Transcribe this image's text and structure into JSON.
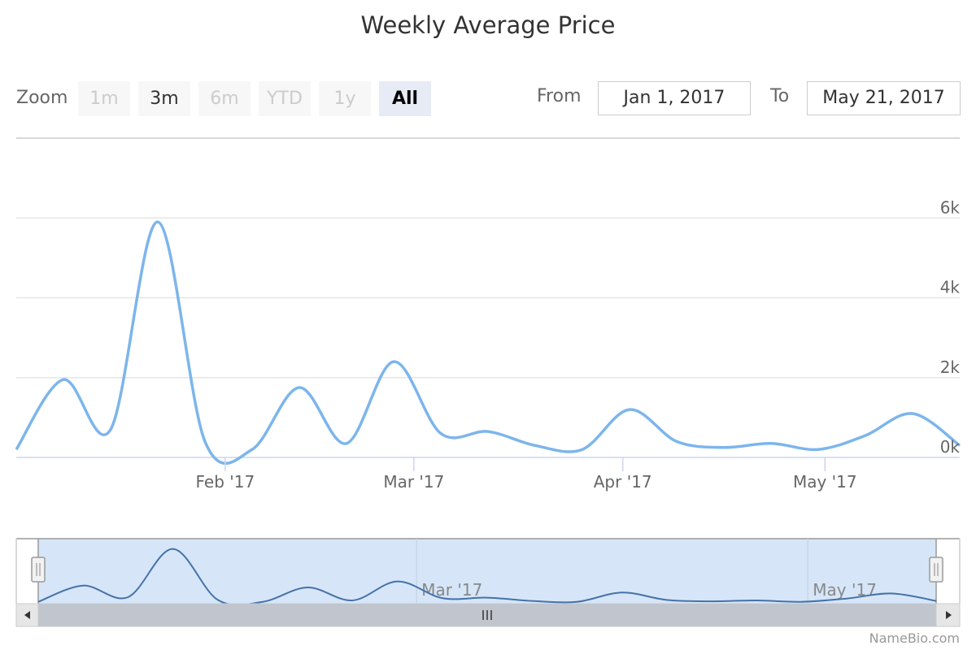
{
  "title": "Weekly Average Price",
  "range_selector": {
    "zoom_label": "Zoom",
    "buttons": [
      {
        "label": "1m",
        "state": "disabled"
      },
      {
        "label": "3m",
        "state": "enabled"
      },
      {
        "label": "6m",
        "state": "disabled"
      },
      {
        "label": "YTD",
        "state": "disabled"
      },
      {
        "label": "1y",
        "state": "disabled"
      },
      {
        "label": "All",
        "state": "active"
      }
    ],
    "from_label": "From",
    "from_value": "Jan 1, 2017",
    "to_label": "To",
    "to_value": "May 21, 2017"
  },
  "credits": "NameBio.com",
  "colors": {
    "series": "#7cb5ec",
    "navigator_series": "#4572a7",
    "navigator_mask": "#d6e6f8",
    "scrollbar": "#c0c5ce"
  },
  "chart_data": {
    "type": "line",
    "title": "Weekly Average Price",
    "x_range": [
      "2017-01-01",
      "2017-05-21"
    ],
    "y_range": [
      0,
      8000
    ],
    "y_ticks": [
      {
        "value": 0,
        "label": "0k"
      },
      {
        "value": 2000,
        "label": "2k"
      },
      {
        "value": 4000,
        "label": "4k"
      },
      {
        "value": 6000,
        "label": "6k"
      }
    ],
    "x_ticks": [
      {
        "date": "2017-02-01",
        "label": "Feb '17"
      },
      {
        "date": "2017-03-01",
        "label": "Mar '17"
      },
      {
        "date": "2017-04-01",
        "label": "Apr '17"
      },
      {
        "date": "2017-05-01",
        "label": "May '17"
      }
    ],
    "navigator_ticks": [
      {
        "date": "2017-03-01",
        "label": "Mar '17"
      },
      {
        "date": "2017-05-01",
        "label": "May '17"
      }
    ],
    "grid": true,
    "y_axis_side": "right",
    "series": [
      {
        "points": [
          {
            "x": "2017-01-01",
            "y": 200
          },
          {
            "x": "2017-01-08",
            "y": 1950
          },
          {
            "x": "2017-01-15",
            "y": 700
          },
          {
            "x": "2017-01-22",
            "y": 5900
          },
          {
            "x": "2017-01-29",
            "y": 400
          },
          {
            "x": "2017-02-05",
            "y": 200
          },
          {
            "x": "2017-02-12",
            "y": 1750
          },
          {
            "x": "2017-02-19",
            "y": 350
          },
          {
            "x": "2017-02-26",
            "y": 2400
          },
          {
            "x": "2017-03-05",
            "y": 600
          },
          {
            "x": "2017-03-12",
            "y": 650
          },
          {
            "x": "2017-03-19",
            "y": 300
          },
          {
            "x": "2017-03-26",
            "y": 200
          },
          {
            "x": "2017-04-02",
            "y": 1200
          },
          {
            "x": "2017-04-09",
            "y": 400
          },
          {
            "x": "2017-04-16",
            "y": 250
          },
          {
            "x": "2017-04-23",
            "y": 350
          },
          {
            "x": "2017-04-30",
            "y": 200
          },
          {
            "x": "2017-05-07",
            "y": 550
          },
          {
            "x": "2017-05-14",
            "y": 1100
          },
          {
            "x": "2017-05-21",
            "y": 300
          }
        ]
      }
    ]
  }
}
